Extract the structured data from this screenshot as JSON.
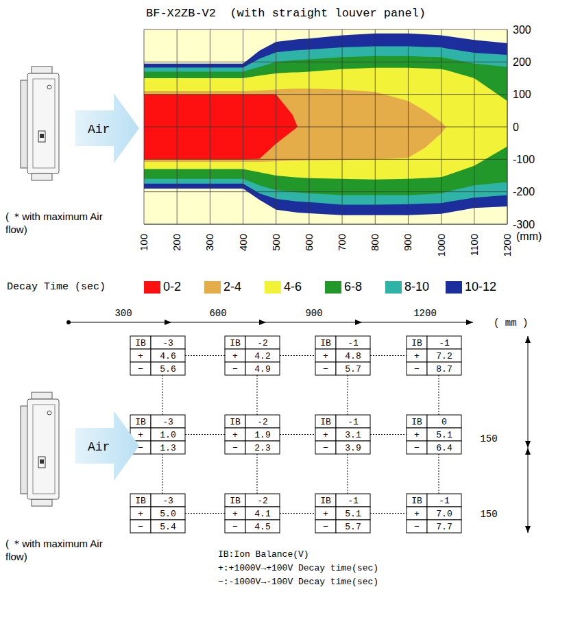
{
  "chart_data": {
    "type": "contour",
    "title": "BF-X2ZB-V2  (with straight louver panel)",
    "xlabel": "(mm)",
    "legend_title": "Decay Time (sec)",
    "annotations": [
      "Air",
      "( ＊with maximum Air flow)"
    ],
    "x": [
      100,
      200,
      300,
      400,
      450,
      500,
      550,
      565,
      600,
      700,
      800,
      900,
      950,
      1000,
      1015,
      1100,
      1200
    ],
    "series": [
      {
        "name": "0-2",
        "color": "#ff1010",
        "values": [
          [
            -100,
            100
          ],
          [
            -100,
            100
          ],
          [
            -100,
            100
          ],
          [
            -100,
            100
          ],
          [
            -98,
            100
          ],
          [
            -52,
            100
          ],
          [
            -12,
            37
          ],
          [
            0,
            0
          ],
          null,
          null,
          null,
          null,
          null,
          null,
          null,
          null,
          null
        ]
      },
      {
        "name": "2-4",
        "color": "#e5ad4a",
        "values": [
          [
            -108,
            110
          ],
          [
            -108,
            110
          ],
          [
            -108,
            110
          ],
          [
            -108,
            110
          ],
          [
            -108,
            112
          ],
          [
            -106,
            115
          ],
          [
            -104,
            118
          ],
          [
            -104,
            118
          ],
          [
            -103,
            118
          ],
          [
            -102,
            115
          ],
          [
            -100,
            108
          ],
          [
            -95,
            80
          ],
          [
            -65,
            50
          ],
          [
            -20,
            15
          ],
          [
            0,
            0
          ],
          null,
          null
        ]
      },
      {
        "name": "4-6",
        "color": "#f2f238",
        "values": [
          [
            -130,
            150
          ],
          [
            -130,
            150
          ],
          [
            -130,
            150
          ],
          [
            -130,
            150
          ],
          [
            -140,
            158
          ],
          [
            -150,
            165
          ],
          [
            -155,
            168
          ],
          [
            -156,
            168
          ],
          [
            -158,
            170
          ],
          [
            -160,
            178
          ],
          [
            -162,
            182
          ],
          [
            -160,
            182
          ],
          [
            -158,
            180
          ],
          [
            -155,
            178
          ],
          [
            -150,
            175
          ],
          [
            -120,
            150
          ],
          [
            -60,
            80
          ]
        ]
      },
      {
        "name": "6-8",
        "color": "#22982a",
        "values": [
          [
            -160,
            170
          ],
          [
            -160,
            170
          ],
          [
            -160,
            170
          ],
          [
            -160,
            170
          ],
          [
            -180,
            185
          ],
          [
            -195,
            200
          ],
          [
            -200,
            205
          ],
          [
            -202,
            206
          ],
          [
            -205,
            208
          ],
          [
            -210,
            215
          ],
          [
            -210,
            218
          ],
          [
            -210,
            218
          ],
          [
            -208,
            216
          ],
          [
            -205,
            215
          ],
          [
            -200,
            212
          ],
          [
            -180,
            195
          ],
          [
            -170,
            185
          ]
        ]
      },
      {
        "name": "8-10",
        "color": "#2fb3a6",
        "values": [
          [
            -175,
            183
          ],
          [
            -175,
            183
          ],
          [
            -175,
            183
          ],
          [
            -175,
            183
          ],
          [
            -205,
            210
          ],
          [
            -222,
            230
          ],
          [
            -228,
            235
          ],
          [
            -230,
            236
          ],
          [
            -232,
            238
          ],
          [
            -240,
            245
          ],
          [
            -240,
            248
          ],
          [
            -238,
            248
          ],
          [
            -236,
            246
          ],
          [
            -235,
            245
          ],
          [
            -232,
            242
          ],
          [
            -218,
            228
          ],
          [
            -210,
            222
          ]
        ]
      },
      {
        "name": "10-12",
        "color": "#1c2e9c",
        "values": [
          [
            -190,
            195
          ],
          [
            -190,
            195
          ],
          [
            -190,
            195
          ],
          [
            -190,
            195
          ],
          [
            -225,
            235
          ],
          [
            -255,
            262
          ],
          [
            -262,
            268
          ],
          [
            -264,
            270
          ],
          [
            -266,
            272
          ],
          [
            -272,
            282
          ],
          [
            -272,
            288
          ],
          [
            -272,
            288
          ],
          [
            -270,
            285
          ],
          [
            -268,
            282
          ],
          [
            -265,
            280
          ],
          [
            -250,
            268
          ],
          [
            -245,
            258
          ]
        ]
      }
    ],
    "xlim": [
      100,
      1200
    ],
    "xticks": [
      100,
      200,
      300,
      400,
      500,
      600,
      700,
      800,
      900,
      1000,
      1100,
      1200
    ],
    "ylim": [
      -300,
      300
    ],
    "yticks": [
      -300,
      -200,
      -100,
      0,
      100,
      200,
      300
    ],
    "grid": true,
    "legend": "bottom"
  },
  "grid_diagram": {
    "distance_ticks": [
      300,
      600,
      900,
      1200
    ],
    "unit": "( mm )",
    "spacing_labels": [
      "150",
      "150"
    ],
    "row_labels": [
      "IB",
      "+",
      "−"
    ],
    "rows": [
      [
        [
          "-3",
          "4.6",
          "5.6"
        ],
        [
          "-2",
          "4.2",
          "4.9"
        ],
        [
          "-1",
          "4.8",
          "5.7"
        ],
        [
          "-1",
          "7.2",
          "8.7"
        ]
      ],
      [
        [
          "-3",
          "1.0",
          "1.3"
        ],
        [
          "-2",
          "1.9",
          "2.3"
        ],
        [
          "-1",
          "3.1",
          "3.9"
        ],
        [
          "0",
          "5.1",
          "6.4"
        ]
      ],
      [
        [
          "-3",
          "5.0",
          "5.4"
        ],
        [
          "-2",
          "4.1",
          "4.5"
        ],
        [
          "-1",
          "5.1",
          "5.7"
        ],
        [
          "-1",
          "7.0",
          "7.7"
        ]
      ]
    ],
    "annotations": [
      "Air",
      "( ＊with maximum Air flow)"
    ],
    "notes": [
      "IB:Ion Balance(V)",
      "+:+1000V→+100V Decay time(sec)",
      "−:-1000V→-100V Decay time(sec)"
    ]
  }
}
